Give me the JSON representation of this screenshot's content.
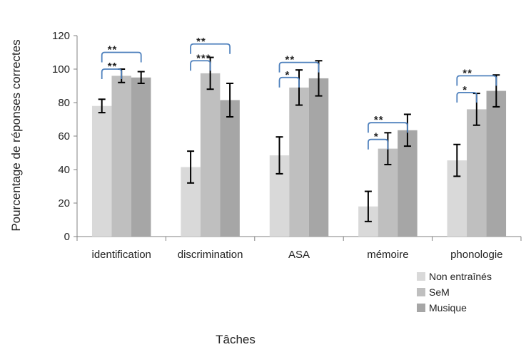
{
  "chart_data": {
    "type": "bar",
    "xlabel": "Tâches",
    "ylabel": "Pourcentage de réponses correctes",
    "ylim": [
      0,
      120
    ],
    "yticks": [
      0,
      20,
      40,
      60,
      80,
      100,
      120
    ],
    "categories": [
      "identification",
      "discrimination",
      "ASA",
      "mémoire",
      "phonologie"
    ],
    "series": [
      {
        "name": "Non entraînés",
        "color": "#d9d9d9",
        "values": [
          78,
          41.5,
          48.5,
          18,
          45.5
        ],
        "errors": [
          4,
          9.5,
          11,
          9,
          9.5
        ]
      },
      {
        "name": "SeM",
        "color": "#bfbfbf",
        "values": [
          96,
          97.5,
          89,
          52.5,
          76
        ],
        "errors": [
          4,
          9.5,
          10.5,
          9.5,
          9.5
        ]
      },
      {
        "name": "Musique",
        "color": "#a6a6a6",
        "values": [
          95,
          81.5,
          94.5,
          63.5,
          87
        ],
        "errors": [
          3.5,
          10,
          10.5,
          9.5,
          9.5
        ]
      }
    ],
    "legend_position": "bottom-right",
    "grid": false,
    "significance": [
      {
        "category": 0,
        "from": 0,
        "to": 1,
        "label": "**",
        "y": 100
      },
      {
        "category": 0,
        "from": 0,
        "to": 2,
        "label": "**",
        "y": 110
      },
      {
        "category": 1,
        "from": 0,
        "to": 1,
        "label": "***",
        "y": 105
      },
      {
        "category": 1,
        "from": 0,
        "to": 2,
        "label": "**",
        "y": 115
      },
      {
        "category": 2,
        "from": 0,
        "to": 1,
        "label": "*",
        "y": 95
      },
      {
        "category": 2,
        "from": 0,
        "to": 2,
        "label": "**",
        "y": 104
      },
      {
        "category": 3,
        "from": 0,
        "to": 1,
        "label": "*",
        "y": 58
      },
      {
        "category": 3,
        "from": 0,
        "to": 2,
        "label": "**",
        "y": 68
      },
      {
        "category": 4,
        "from": 0,
        "to": 1,
        "label": "*",
        "y": 86
      },
      {
        "category": 4,
        "from": 0,
        "to": 2,
        "label": "**",
        "y": 96
      }
    ],
    "bracket_color": "#4f81bd"
  }
}
